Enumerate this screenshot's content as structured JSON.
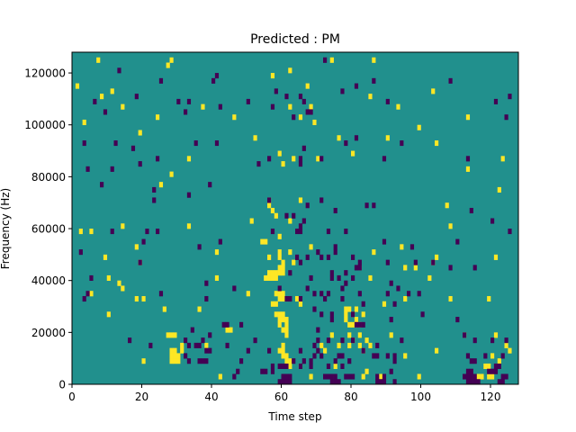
{
  "chart_data": {
    "type": "heatmap",
    "title": "Predicted : PM",
    "xlabel": "Time step",
    "ylabel": "Frequency (Hz)",
    "xlim": [
      0,
      128
    ],
    "ylim": [
      0,
      128000
    ],
    "x_ticks": [
      0,
      20,
      40,
      60,
      80,
      100,
      120
    ],
    "y_ticks": [
      0,
      20000,
      40000,
      60000,
      80000,
      100000,
      120000
    ],
    "n_time_steps": 128,
    "n_frequency_bins": 64,
    "bin_height_hz": 2000,
    "grid": false,
    "legend": "none",
    "value_levels": {
      "low": -1,
      "background": 0,
      "high": 1
    },
    "colors": {
      "low": "#440154",
      "background": "#21908d",
      "high": "#fde725"
    },
    "cells_high": [
      [
        7,
        62
      ],
      [
        28,
        62
      ],
      [
        86,
        62
      ],
      [
        74,
        62
      ],
      [
        27,
        61
      ],
      [
        62,
        60
      ],
      [
        57,
        59
      ],
      [
        1,
        57
      ],
      [
        67,
        57
      ],
      [
        11,
        56
      ],
      [
        103,
        56
      ],
      [
        8,
        55
      ],
      [
        85,
        55
      ],
      [
        14,
        53
      ],
      [
        37,
        53
      ],
      [
        68,
        53
      ],
      [
        93,
        53
      ],
      [
        62,
        53
      ],
      [
        24,
        51
      ],
      [
        46,
        51
      ],
      [
        65,
        51
      ],
      [
        113,
        51
      ],
      [
        3,
        50
      ],
      [
        69,
        50
      ],
      [
        99,
        49
      ],
      [
        19,
        48
      ],
      [
        52,
        47
      ],
      [
        76,
        47
      ],
      [
        90,
        47
      ],
      [
        104,
        46
      ],
      [
        59,
        44
      ],
      [
        80,
        44
      ],
      [
        63,
        43
      ],
      [
        33,
        43
      ],
      [
        70,
        43
      ],
      [
        123,
        43
      ],
      [
        60,
        42
      ],
      [
        113,
        41
      ],
      [
        28,
        40
      ],
      [
        25,
        38
      ],
      [
        122,
        37
      ],
      [
        56,
        35
      ],
      [
        65,
        35
      ],
      [
        107,
        34
      ],
      [
        56,
        34
      ],
      [
        57,
        33
      ],
      [
        58,
        32
      ],
      [
        51,
        31
      ],
      [
        62,
        31
      ],
      [
        14,
        30
      ],
      [
        33,
        30
      ],
      [
        2,
        29
      ],
      [
        5,
        29
      ],
      [
        108,
        30
      ],
      [
        59,
        28
      ],
      [
        54,
        27
      ],
      [
        55,
        27
      ],
      [
        18,
        26
      ],
      [
        68,
        26
      ],
      [
        94,
        26
      ],
      [
        41,
        25
      ],
      [
        86,
        25
      ],
      [
        62,
        25
      ],
      [
        59,
        25
      ],
      [
        9,
        24
      ],
      [
        104,
        24
      ],
      [
        56,
        24
      ],
      [
        59,
        24
      ],
      [
        19,
        23
      ],
      [
        63,
        23
      ],
      [
        60,
        23
      ],
      [
        121,
        24
      ],
      [
        103,
        23
      ],
      [
        82,
        22
      ],
      [
        59,
        22
      ],
      [
        60,
        22
      ],
      [
        95,
        22
      ],
      [
        98,
        22
      ],
      [
        56,
        21
      ],
      [
        57,
        21
      ],
      [
        58,
        21
      ],
      [
        59,
        21
      ],
      [
        60,
        21
      ],
      [
        55,
        20
      ],
      [
        56,
        20
      ],
      [
        57,
        20
      ],
      [
        58,
        20
      ],
      [
        10,
        20
      ],
      [
        41,
        20
      ],
      [
        85,
        20
      ],
      [
        102,
        20
      ],
      [
        13,
        19
      ],
      [
        14,
        18
      ],
      [
        5,
        17
      ],
      [
        50,
        17
      ],
      [
        64,
        16
      ],
      [
        95,
        16
      ],
      [
        18,
        16
      ],
      [
        20,
        16
      ],
      [
        108,
        16
      ],
      [
        119,
        16
      ],
      [
        59,
        16
      ],
      [
        60,
        16
      ],
      [
        61,
        16
      ],
      [
        58,
        17
      ],
      [
        59,
        17
      ],
      [
        60,
        17
      ],
      [
        10,
        13
      ],
      [
        57,
        15
      ],
      [
        58,
        15
      ],
      [
        65,
        15
      ],
      [
        89,
        15
      ],
      [
        36,
        14
      ],
      [
        26,
        14
      ],
      [
        78,
        14
      ],
      [
        79,
        14
      ],
      [
        81,
        14
      ],
      [
        80,
        13
      ],
      [
        58,
        13
      ],
      [
        59,
        13
      ],
      [
        60,
        13
      ],
      [
        78,
        13
      ],
      [
        83,
        13
      ],
      [
        59,
        12
      ],
      [
        60,
        12
      ],
      [
        61,
        12
      ],
      [
        59,
        11
      ],
      [
        61,
        11
      ],
      [
        78,
        12
      ],
      [
        81,
        12
      ],
      [
        79,
        11
      ],
      [
        80,
        11
      ],
      [
        81,
        11
      ],
      [
        82,
        11
      ],
      [
        44,
        10
      ],
      [
        45,
        10
      ],
      [
        60,
        10
      ],
      [
        61,
        10
      ],
      [
        27,
        9
      ],
      [
        28,
        9
      ],
      [
        29,
        9
      ],
      [
        61,
        9
      ],
      [
        74,
        9
      ],
      [
        79,
        9
      ],
      [
        82,
        9
      ],
      [
        91,
        9
      ],
      [
        112,
        9
      ],
      [
        121,
        9
      ],
      [
        80,
        8
      ],
      [
        84,
        8
      ],
      [
        76,
        7
      ],
      [
        31,
        7
      ],
      [
        38,
        7
      ],
      [
        60,
        7
      ],
      [
        71,
        7
      ],
      [
        79,
        7
      ],
      [
        82,
        7
      ],
      [
        85,
        7
      ],
      [
        124,
        7
      ],
      [
        28,
        6
      ],
      [
        29,
        6
      ],
      [
        31,
        6
      ],
      [
        59,
        6
      ],
      [
        60,
        6
      ],
      [
        72,
        6
      ],
      [
        83,
        6
      ],
      [
        104,
        6
      ],
      [
        125,
        6
      ],
      [
        28,
        5
      ],
      [
        29,
        5
      ],
      [
        30,
        5
      ],
      [
        60,
        5
      ],
      [
        61,
        5
      ],
      [
        95,
        5
      ],
      [
        120,
        5
      ],
      [
        28,
        4
      ],
      [
        29,
        4
      ],
      [
        30,
        4
      ],
      [
        61,
        4
      ],
      [
        62,
        4
      ],
      [
        122,
        4
      ],
      [
        20,
        4
      ],
      [
        62,
        3
      ],
      [
        65,
        3
      ],
      [
        75,
        3
      ],
      [
        118,
        3
      ],
      [
        119,
        3
      ],
      [
        84,
        2
      ],
      [
        83,
        1
      ],
      [
        68,
        1
      ],
      [
        99,
        1
      ],
      [
        116,
        1
      ],
      [
        117,
        1
      ],
      [
        119,
        1
      ],
      [
        120,
        1
      ],
      [
        88,
        1
      ],
      [
        42,
        1
      ]
    ],
    "cells_low": [
      [
        72,
        62
      ],
      [
        13,
        60
      ],
      [
        41,
        59
      ],
      [
        25,
        58
      ],
      [
        40,
        58
      ],
      [
        86,
        58
      ],
      [
        108,
        58
      ],
      [
        77,
        56
      ],
      [
        58,
        56
      ],
      [
        81,
        57
      ],
      [
        18,
        55
      ],
      [
        65,
        55
      ],
      [
        33,
        54
      ],
      [
        50,
        54
      ],
      [
        61,
        55
      ],
      [
        6,
        54
      ],
      [
        66,
        54
      ],
      [
        30,
        54
      ],
      [
        57,
        53
      ],
      [
        90,
        54
      ],
      [
        121,
        54
      ],
      [
        125,
        55
      ],
      [
        9,
        52
      ],
      [
        63,
        51
      ],
      [
        42,
        53
      ],
      [
        67,
        52
      ],
      [
        68,
        52
      ],
      [
        124,
        51
      ],
      [
        32,
        52
      ],
      [
        3,
        46
      ],
      [
        12,
        46
      ],
      [
        17,
        45
      ],
      [
        66,
        45
      ],
      [
        41,
        46
      ],
      [
        78,
        46
      ],
      [
        81,
        47
      ],
      [
        94,
        46
      ],
      [
        35,
        46
      ],
      [
        24,
        43
      ],
      [
        56,
        43
      ],
      [
        65,
        43
      ],
      [
        71,
        43
      ],
      [
        89,
        43
      ],
      [
        53,
        42
      ],
      [
        19,
        42
      ],
      [
        11,
        41
      ],
      [
        65,
        42
      ],
      [
        113,
        43
      ],
      [
        4,
        41
      ],
      [
        8,
        38
      ],
      [
        23,
        37
      ],
      [
        39,
        38
      ],
      [
        33,
        36
      ],
      [
        23,
        35
      ],
      [
        56,
        35
      ],
      [
        67,
        34
      ],
      [
        71,
        35
      ],
      [
        84,
        34
      ],
      [
        86,
        34
      ],
      [
        75,
        33
      ],
      [
        61,
        32
      ],
      [
        63,
        32
      ],
      [
        114,
        33
      ],
      [
        120,
        31
      ],
      [
        65,
        30
      ],
      [
        57,
        29
      ],
      [
        66,
        31
      ],
      [
        11,
        29
      ],
      [
        125,
        29
      ],
      [
        21,
        29
      ],
      [
        24,
        29
      ],
      [
        78,
        29
      ],
      [
        64,
        29
      ],
      [
        65,
        29
      ],
      [
        73,
        29
      ],
      [
        20,
        27
      ],
      [
        42,
        27
      ],
      [
        36,
        26
      ],
      [
        75,
        26
      ],
      [
        89,
        27
      ],
      [
        97,
        26
      ],
      [
        110,
        27
      ],
      [
        70,
        25
      ],
      [
        19,
        23
      ],
      [
        67,
        24
      ],
      [
        71,
        24
      ],
      [
        75,
        25
      ],
      [
        2,
        25
      ],
      [
        64,
        24
      ],
      [
        65,
        23
      ],
      [
        73,
        24
      ],
      [
        80,
        24
      ],
      [
        82,
        23
      ],
      [
        90,
        23
      ],
      [
        103,
        23
      ],
      [
        81,
        22
      ],
      [
        82,
        22
      ],
      [
        98,
        23
      ],
      [
        108,
        22
      ],
      [
        115,
        22
      ],
      [
        62,
        21
      ],
      [
        74,
        21
      ],
      [
        78,
        21
      ],
      [
        68,
        20
      ],
      [
        74,
        20
      ],
      [
        76,
        20
      ],
      [
        80,
        20
      ],
      [
        5,
        20
      ],
      [
        38,
        19
      ],
      [
        78,
        19
      ],
      [
        91,
        19
      ],
      [
        77,
        18
      ],
      [
        4,
        17
      ],
      [
        25,
        17
      ],
      [
        46,
        18
      ],
      [
        59,
        18
      ],
      [
        67,
        18
      ],
      [
        73,
        17
      ],
      [
        93,
        18
      ],
      [
        96,
        17
      ],
      [
        99,
        17
      ],
      [
        38,
        16
      ],
      [
        61,
        16
      ],
      [
        65,
        16
      ],
      [
        69,
        17
      ],
      [
        82,
        17
      ],
      [
        3,
        16
      ],
      [
        62,
        16
      ],
      [
        71,
        17
      ],
      [
        72,
        16
      ],
      [
        77,
        16
      ],
      [
        90,
        17
      ],
      [
        83,
        15
      ],
      [
        92,
        15
      ],
      [
        69,
        14
      ],
      [
        74,
        13
      ],
      [
        80,
        13
      ],
      [
        91,
        12
      ],
      [
        44,
        11
      ],
      [
        71,
        13
      ],
      [
        100,
        13
      ],
      [
        110,
        12
      ],
      [
        34,
        10
      ],
      [
        43,
        11
      ],
      [
        48,
        11
      ],
      [
        74,
        12
      ],
      [
        81,
        11
      ],
      [
        82,
        11
      ],
      [
        83,
        11
      ],
      [
        39,
        9
      ],
      [
        70,
        10
      ],
      [
        112,
        9
      ],
      [
        16,
        8
      ],
      [
        32,
        8
      ],
      [
        37,
        8
      ],
      [
        70,
        8
      ],
      [
        73,
        8
      ],
      [
        36,
        7
      ],
      [
        69,
        7
      ],
      [
        87,
        7
      ],
      [
        94,
        8
      ],
      [
        22,
        7
      ],
      [
        44,
        7
      ],
      [
        52,
        8
      ],
      [
        77,
        8
      ],
      [
        80,
        8
      ],
      [
        115,
        8
      ],
      [
        120,
        8
      ],
      [
        124,
        8
      ],
      [
        33,
        7
      ],
      [
        35,
        7
      ],
      [
        38,
        6
      ],
      [
        39,
        6
      ],
      [
        50,
        6
      ],
      [
        65,
        6
      ],
      [
        56,
        6
      ],
      [
        70,
        6
      ],
      [
        83,
        6
      ],
      [
        86,
        5
      ],
      [
        87,
        5
      ],
      [
        90,
        5
      ],
      [
        92,
        5
      ],
      [
        113,
        5
      ],
      [
        118,
        5
      ],
      [
        69,
        5
      ],
      [
        71,
        5
      ],
      [
        76,
        5
      ],
      [
        77,
        5
      ],
      [
        123,
        5
      ],
      [
        32,
        5
      ],
      [
        33,
        4
      ],
      [
        36,
        4
      ],
      [
        37,
        4
      ],
      [
        38,
        4
      ],
      [
        48,
        4
      ],
      [
        63,
        4
      ],
      [
        66,
        4
      ],
      [
        68,
        4
      ],
      [
        75,
        4
      ],
      [
        79,
        4
      ],
      [
        92,
        4
      ],
      [
        114,
        4
      ],
      [
        115,
        4
      ],
      [
        73,
        3
      ],
      [
        77,
        3
      ],
      [
        57,
        3
      ],
      [
        59,
        3
      ],
      [
        60,
        3
      ],
      [
        61,
        3
      ],
      [
        65,
        3
      ],
      [
        68,
        3
      ],
      [
        121,
        3
      ],
      [
        122,
        3
      ],
      [
        47,
        2
      ],
      [
        54,
        2
      ],
      [
        55,
        2
      ],
      [
        57,
        2
      ],
      [
        91,
        2
      ],
      [
        113,
        2
      ],
      [
        114,
        2
      ],
      [
        119,
        2
      ],
      [
        120,
        2
      ],
      [
        121,
        2
      ],
      [
        46,
        1
      ],
      [
        60,
        1
      ],
      [
        61,
        1
      ],
      [
        62,
        1
      ],
      [
        72,
        1
      ],
      [
        73,
        1
      ],
      [
        74,
        1
      ],
      [
        75,
        1
      ],
      [
        78,
        1
      ],
      [
        79,
        1
      ],
      [
        80,
        1
      ],
      [
        87,
        1
      ],
      [
        89,
        1
      ],
      [
        112,
        1
      ],
      [
        113,
        1
      ],
      [
        114,
        1
      ],
      [
        115,
        1
      ],
      [
        123,
        1
      ],
      [
        124,
        1
      ],
      [
        59,
        0
      ],
      [
        60,
        0
      ],
      [
        61,
        0
      ],
      [
        62,
        0
      ],
      [
        74,
        0
      ],
      [
        75,
        0
      ],
      [
        76,
        0
      ],
      [
        87,
        0
      ],
      [
        88,
        0
      ],
      [
        89,
        0
      ],
      [
        92,
        0
      ],
      [
        113,
        0
      ],
      [
        114,
        0
      ],
      [
        115,
        0
      ],
      [
        116,
        0
      ],
      [
        122,
        0
      ],
      [
        123,
        0
      ]
    ]
  }
}
